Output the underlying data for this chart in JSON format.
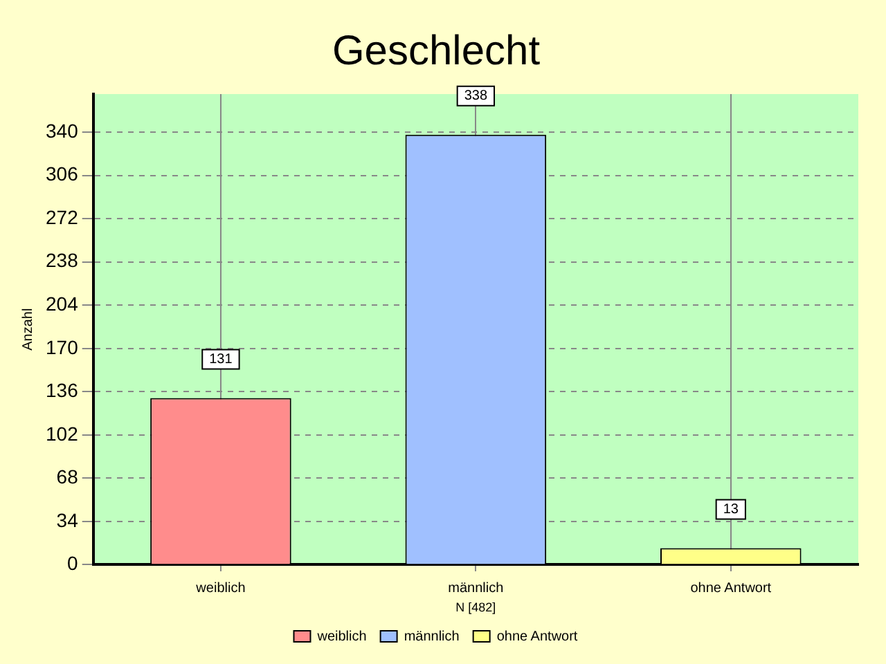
{
  "chart_data": {
    "type": "bar",
    "title": "Geschlecht",
    "xlabel": "N [482]",
    "ylabel": "Anzahl",
    "categories": [
      "weiblich",
      "männlich",
      "ohne Antwort"
    ],
    "series": [
      {
        "name": "weiblich",
        "color": "#ff8c8c",
        "values": [
          131,
          null,
          null
        ]
      },
      {
        "name": "männlich",
        "color": "#a0c0ff",
        "values": [
          null,
          338,
          null
        ]
      },
      {
        "name": "ohne Antwort",
        "color": "#ffff88",
        "values": [
          null,
          null,
          13
        ]
      }
    ],
    "ylim": [
      0,
      370
    ],
    "yticks": [
      0,
      34,
      68,
      102,
      136,
      170,
      204,
      238,
      272,
      306,
      340
    ],
    "grid": true,
    "legend": "bottom",
    "data_labels": true
  }
}
